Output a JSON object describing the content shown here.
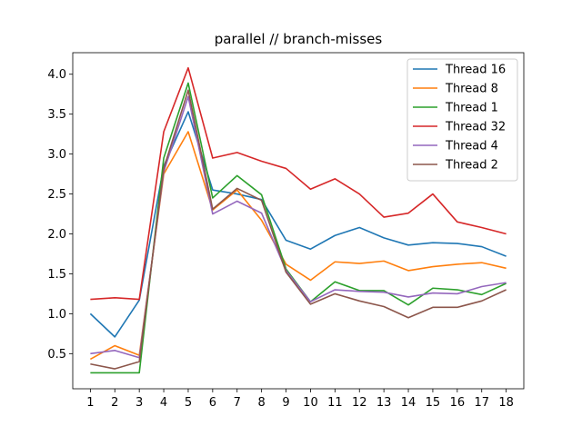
{
  "chart_data": {
    "type": "line",
    "title": "parallel // branch-misses",
    "xlabel": "",
    "ylabel": "",
    "x": [
      1,
      2,
      3,
      4,
      5,
      6,
      7,
      8,
      9,
      10,
      11,
      12,
      13,
      14,
      15,
      16,
      17,
      18
    ],
    "xlim": [
      0.28,
      18.72
    ],
    "ylim": [
      0.06,
      4.27
    ],
    "yticks": [
      0.5,
      1.0,
      1.5,
      2.0,
      2.5,
      3.0,
      3.5,
      4.0
    ],
    "ytick_labels": [
      "0.5",
      "1.0",
      "1.5",
      "2.0",
      "2.5",
      "3.0",
      "3.5",
      "4.0"
    ],
    "grid": false,
    "legend_position": "top-right",
    "series": [
      {
        "name": "Thread 16",
        "color": "#1f77b4",
        "values": [
          1.0,
          0.71,
          1.17,
          2.85,
          3.53,
          2.55,
          2.5,
          2.43,
          1.92,
          1.81,
          1.98,
          2.08,
          1.95,
          1.86,
          1.89,
          1.88,
          1.84,
          1.72
        ]
      },
      {
        "name": "Thread 8",
        "color": "#ff7f0e",
        "values": [
          0.43,
          0.6,
          0.48,
          2.75,
          3.28,
          2.3,
          2.55,
          2.17,
          1.62,
          1.42,
          1.65,
          1.63,
          1.66,
          1.54,
          1.59,
          1.62,
          1.64,
          1.57
        ]
      },
      {
        "name": "Thread 1",
        "color": "#2ca02c",
        "values": [
          0.26,
          0.26,
          0.26,
          2.95,
          3.89,
          2.45,
          2.73,
          2.49,
          1.56,
          1.15,
          1.4,
          1.29,
          1.29,
          1.11,
          1.32,
          1.3,
          1.24,
          1.38
        ]
      },
      {
        "name": "Thread 32",
        "color": "#d62728",
        "values": [
          1.18,
          1.2,
          1.18,
          3.28,
          4.08,
          2.95,
          3.02,
          2.91,
          2.82,
          2.56,
          2.69,
          2.5,
          2.21,
          2.26,
          2.5,
          2.15,
          2.08,
          2.0
        ]
      },
      {
        "name": "Thread 4",
        "color": "#9467bd",
        "values": [
          0.5,
          0.54,
          0.45,
          2.78,
          3.72,
          2.25,
          2.41,
          2.26,
          1.54,
          1.15,
          1.3,
          1.28,
          1.27,
          1.21,
          1.26,
          1.25,
          1.34,
          1.39
        ]
      },
      {
        "name": "Thread 2",
        "color": "#8c564b",
        "values": [
          0.37,
          0.31,
          0.4,
          2.82,
          3.8,
          2.31,
          2.57,
          2.42,
          1.52,
          1.12,
          1.25,
          1.16,
          1.09,
          0.95,
          1.08,
          1.08,
          1.16,
          1.3
        ]
      }
    ]
  }
}
